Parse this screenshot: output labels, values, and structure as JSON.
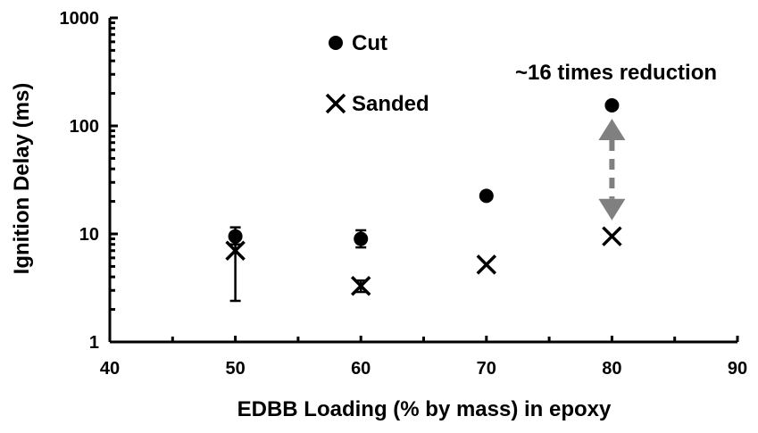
{
  "chart_data": {
    "type": "scatter",
    "title": "",
    "xlabel": "EDBB Loading (% by mass) in epoxy",
    "ylabel": "Ignition Delay (ms)",
    "xlim": [
      40,
      90
    ],
    "ylim": [
      1,
      1000
    ],
    "y_scale": "log",
    "grid": false,
    "x_ticks": [
      40,
      50,
      60,
      70,
      80,
      90
    ],
    "x_tick_labels": [
      "40",
      "50",
      "60",
      "70",
      "80",
      "90"
    ],
    "y_ticks": [
      1,
      10,
      100,
      1000
    ],
    "y_tick_labels": [
      "1",
      "10",
      "100",
      "1000"
    ],
    "legend_position": "top-center",
    "series": [
      {
        "name": "Cut",
        "marker": "circle",
        "color": "#000000",
        "points": [
          {
            "x": 50,
            "y": 9.5,
            "err_low": 8.0,
            "err_high": 11.5
          },
          {
            "x": 60,
            "y": 9.0,
            "err_low": 7.5,
            "err_high": 10.8
          },
          {
            "x": 70,
            "y": 22.5
          },
          {
            "x": 80,
            "y": 155
          }
        ]
      },
      {
        "name": "Sanded",
        "marker": "x",
        "color": "#000000",
        "points": [
          {
            "x": 50,
            "y": 7.0,
            "err_low": 2.4,
            "err_high": 9.0
          },
          {
            "x": 60,
            "y": 3.3,
            "err_low": 2.9,
            "err_high": 3.7
          },
          {
            "x": 70,
            "y": 5.2
          },
          {
            "x": 80,
            "y": 9.5
          }
        ]
      }
    ],
    "annotations": [
      {
        "text": "~16 times reduction",
        "arrow_color": "#808080",
        "arrow_x": 80,
        "arrow_from_y": 155,
        "arrow_to_y": 9.5
      }
    ]
  }
}
